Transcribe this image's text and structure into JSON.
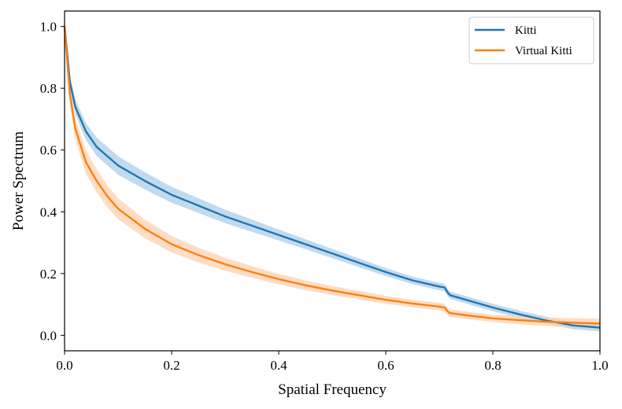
{
  "chart_data": {
    "type": "line",
    "title": "",
    "xlabel": "Spatial Frequency",
    "ylabel": "Power Spectrum",
    "xlim": [
      0.0,
      1.0
    ],
    "ylim": [
      -0.05,
      1.05
    ],
    "xticks": [
      "0.0",
      "0.2",
      "0.4",
      "0.6",
      "0.8",
      "1.0"
    ],
    "yticks": [
      "0.0",
      "0.2",
      "0.4",
      "0.6",
      "0.8",
      "1.0"
    ],
    "grid": false,
    "legend_position": "top-right",
    "series": [
      {
        "name": "Kitti",
        "color": "#1f77b4",
        "band_color": "#aecde8",
        "x": [
          0.0,
          0.01,
          0.02,
          0.04,
          0.06,
          0.08,
          0.1,
          0.15,
          0.2,
          0.25,
          0.3,
          0.35,
          0.4,
          0.45,
          0.5,
          0.55,
          0.6,
          0.65,
          0.7,
          0.71,
          0.715,
          0.72,
          0.75,
          0.8,
          0.85,
          0.9,
          0.95,
          1.0
        ],
        "y": [
          1.0,
          0.82,
          0.74,
          0.66,
          0.61,
          0.58,
          0.55,
          0.5,
          0.455,
          0.42,
          0.385,
          0.355,
          0.325,
          0.295,
          0.265,
          0.235,
          0.205,
          0.178,
          0.158,
          0.155,
          0.14,
          0.13,
          0.115,
          0.09,
          0.068,
          0.048,
          0.032,
          0.025
        ],
        "band": [
          0.0,
          0.02,
          0.025,
          0.028,
          0.03,
          0.03,
          0.03,
          0.028,
          0.026,
          0.024,
          0.022,
          0.02,
          0.018,
          0.016,
          0.015,
          0.014,
          0.013,
          0.012,
          0.012,
          0.012,
          0.012,
          0.012,
          0.012,
          0.012,
          0.012,
          0.012,
          0.012,
          0.012
        ]
      },
      {
        "name": "Virtual Kitti",
        "color": "#ff7f0e",
        "band_color": "#fdd1b0",
        "x": [
          0.0,
          0.01,
          0.02,
          0.04,
          0.06,
          0.08,
          0.1,
          0.15,
          0.2,
          0.25,
          0.3,
          0.35,
          0.4,
          0.45,
          0.5,
          0.55,
          0.6,
          0.65,
          0.7,
          0.71,
          0.715,
          0.72,
          0.75,
          0.8,
          0.85,
          0.9,
          0.95,
          1.0
        ],
        "y": [
          1.0,
          0.78,
          0.67,
          0.56,
          0.5,
          0.45,
          0.41,
          0.345,
          0.295,
          0.26,
          0.23,
          0.205,
          0.182,
          0.162,
          0.145,
          0.13,
          0.115,
          0.103,
          0.093,
          0.09,
          0.078,
          0.072,
          0.065,
          0.055,
          0.049,
          0.044,
          0.041,
          0.038
        ],
        "band": [
          0.0,
          0.03,
          0.035,
          0.038,
          0.038,
          0.036,
          0.034,
          0.03,
          0.027,
          0.024,
          0.021,
          0.019,
          0.017,
          0.016,
          0.015,
          0.014,
          0.013,
          0.012,
          0.012,
          0.012,
          0.012,
          0.012,
          0.012,
          0.012,
          0.013,
          0.014,
          0.015,
          0.016
        ]
      }
    ]
  }
}
